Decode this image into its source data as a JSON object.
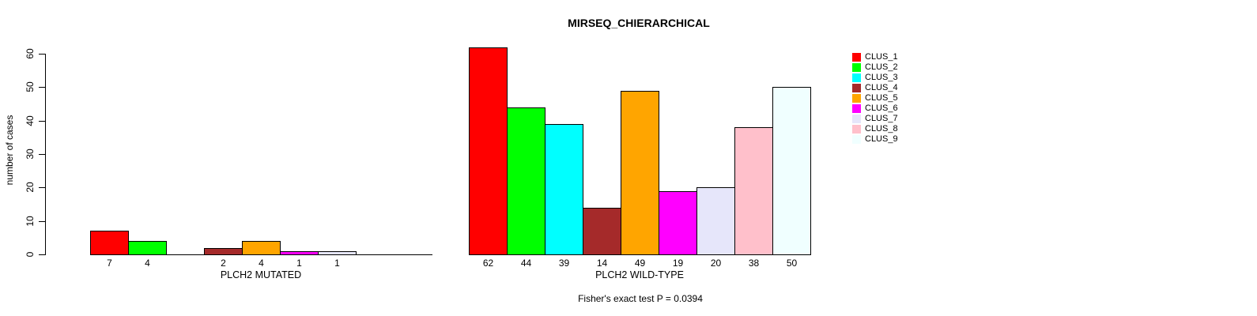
{
  "title": "MIRSEQ_CHIERARCHICAL",
  "footer": "Fisher's exact test P = 0.0394",
  "chart_data": {
    "type": "bar",
    "title": "MIRSEQ_CHIERARCHICAL",
    "ylabel": "number of cases",
    "ylim": [
      0,
      60
    ],
    "yticks": [
      0,
      10,
      20,
      30,
      40,
      50,
      60
    ],
    "grid": false,
    "legend_position": "right",
    "bar_borders": "black",
    "series_names": [
      "CLUS_1",
      "CLUS_2",
      "CLUS_3",
      "CLUS_4",
      "CLUS_5",
      "CLUS_6",
      "CLUS_7",
      "CLUS_8",
      "CLUS_9"
    ],
    "colors": [
      "#FF0000",
      "#00FF00",
      "#00FFFF",
      "#A52A2A",
      "#FFA500",
      "#FF00FF",
      "#E6E6FA",
      "#FFC0CB",
      "#F0FFFF"
    ],
    "groups": [
      {
        "xlabel": "PLCH2 MUTATED",
        "values": [
          7,
          4,
          0,
          2,
          4,
          1,
          1,
          0,
          0
        ]
      },
      {
        "xlabel": "PLCH2 WILD-TYPE",
        "values": [
          62,
          44,
          39,
          14,
          49,
          19,
          20,
          38,
          50
        ]
      }
    ],
    "value_labels_shown_for_nonzero_bars": true,
    "annotation": "Fisher's exact test P = 0.0394"
  },
  "legend": {
    "entries": [
      {
        "label": "CLUS_1",
        "color": "#FF0000"
      },
      {
        "label": "CLUS_2",
        "color": "#00FF00"
      },
      {
        "label": "CLUS_3",
        "color": "#00FFFF"
      },
      {
        "label": "CLUS_4",
        "color": "#A52A2A"
      },
      {
        "label": "CLUS_5",
        "color": "#FFA500"
      },
      {
        "label": "CLUS_6",
        "color": "#FF00FF"
      },
      {
        "label": "CLUS_7",
        "color": "#E6E6FA"
      },
      {
        "label": "CLUS_8",
        "color": "#FFC0CB"
      },
      {
        "label": "CLUS_9",
        "color": "#F0FFFF"
      }
    ]
  }
}
